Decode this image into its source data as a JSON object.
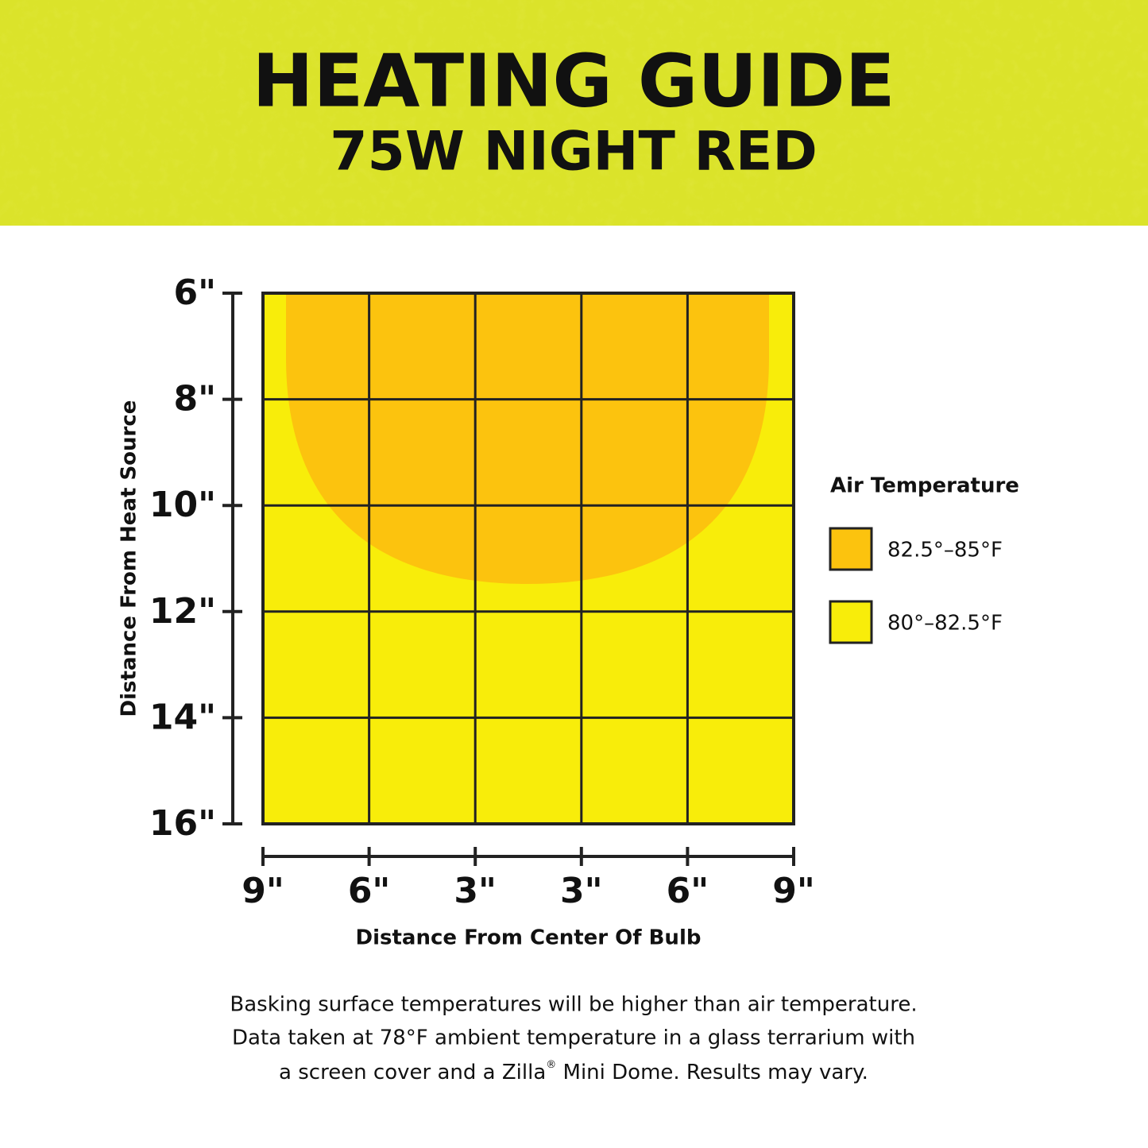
{
  "header": {
    "title": "HEATING GUIDE",
    "subtitle": "75W NIGHT RED"
  },
  "axes": {
    "y": {
      "label": "Distance From Heat Source",
      "ticks": [
        "6\"",
        "8\"",
        "10\"",
        "12\"",
        "14\"",
        "16\""
      ]
    },
    "x": {
      "label": "Distance From Center Of Bulb",
      "ticks": [
        "9\"",
        "6\"",
        "3\"",
        "3\"",
        "6\"",
        "9\""
      ]
    }
  },
  "legend": {
    "title": "Air Temperature",
    "items": [
      {
        "label": "82.5°–85°F",
        "color": "#fcc30e"
      },
      {
        "label": "80°–82.5°F",
        "color": "#f8ed0a"
      }
    ]
  },
  "footnote": {
    "lines": [
      "Basking surface temperatures will be higher than air temperature.",
      "Data taken at 78°F ambient temperature in a glass terrarium with"
    ],
    "line3": [
      "a screen cover and a Zilla",
      "®",
      " Mini Dome. Results may vary."
    ]
  }
}
